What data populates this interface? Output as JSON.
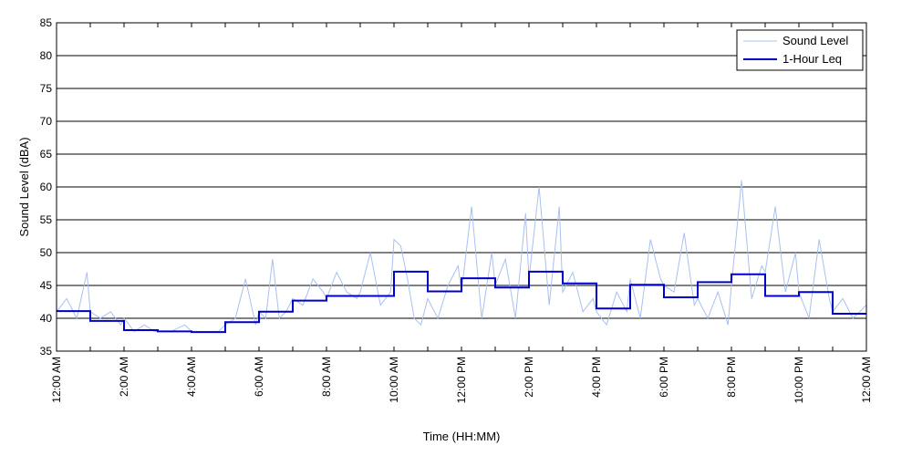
{
  "chart_data": {
    "type": "line",
    "title": "",
    "xlabel": "Time (HH:MM)",
    "ylabel": "Sound Level (dBA)",
    "xlim": [
      0,
      24
    ],
    "ylim": [
      35,
      85
    ],
    "x_tick_values": [
      0,
      2,
      4,
      6,
      8,
      10,
      12,
      14,
      16,
      18,
      20,
      22,
      24
    ],
    "x_tick_labels": [
      "12:00 AM",
      "2:00 AM",
      "4:00 AM",
      "6:00 AM",
      "8:00 AM",
      "10:00 AM",
      "12:00 PM",
      "2:00 PM",
      "4:00 PM",
      "6:00 PM",
      "8:00 PM",
      "10:00 PM",
      "12:00 AM"
    ],
    "y_ticks": [
      35,
      40,
      45,
      50,
      55,
      60,
      65,
      70,
      75,
      80,
      85
    ],
    "grid": "horizontal",
    "legend_position": "top-right",
    "series": [
      {
        "name": "Sound Level",
        "color": "#a8c0f0",
        "x": [
          0,
          0.3,
          0.6,
          0.9,
          1.0,
          1.3,
          1.6,
          1.9,
          2.0,
          2.3,
          2.6,
          2.9,
          3.0,
          3.4,
          3.8,
          4.0,
          4.4,
          4.8,
          5.0,
          5.3,
          5.6,
          5.9,
          6.0,
          6.2,
          6.4,
          6.6,
          6.8,
          7.0,
          7.3,
          7.6,
          7.9,
          8.0,
          8.3,
          8.6,
          8.9,
          9.0,
          9.3,
          9.6,
          9.9,
          10.0,
          10.2,
          10.4,
          10.6,
          10.8,
          11.0,
          11.3,
          11.6,
          11.9,
          12.0,
          12.3,
          12.6,
          12.9,
          13.0,
          13.3,
          13.6,
          13.9,
          14.0,
          14.3,
          14.6,
          14.9,
          15.0,
          15.3,
          15.6,
          15.9,
          16.0,
          16.3,
          16.6,
          16.9,
          17.0,
          17.3,
          17.6,
          17.9,
          18.0,
          18.3,
          18.6,
          18.9,
          19.0,
          19.3,
          19.6,
          19.9,
          20.0,
          20.3,
          20.6,
          20.9,
          21.0,
          21.3,
          21.6,
          21.9,
          22.0,
          22.3,
          22.6,
          22.9,
          23.0,
          23.3,
          23.6,
          24.0
        ],
        "y": [
          41,
          43,
          40,
          47,
          41,
          40,
          41,
          39,
          40,
          38,
          39,
          38,
          38,
          38,
          39,
          38,
          38,
          38,
          39,
          40,
          46,
          39,
          41,
          40,
          49,
          40,
          41,
          43,
          42,
          46,
          44,
          43,
          47,
          44,
          43,
          44,
          50,
          42,
          44,
          52,
          51,
          46,
          40,
          39,
          43,
          40,
          45,
          48,
          44,
          57,
          40,
          50,
          45,
          49,
          40,
          56,
          46,
          60,
          42,
          57,
          44,
          47,
          41,
          43,
          41,
          39,
          44,
          41,
          46,
          40,
          52,
          46,
          45,
          44,
          53,
          42,
          43,
          40,
          44,
          39,
          45,
          61,
          43,
          48,
          47,
          57,
          44,
          50,
          44,
          40,
          52,
          43,
          41,
          43,
          40,
          42
        ]
      },
      {
        "name": "1-Hour Leq",
        "color": "#0000cc",
        "step": "post",
        "x": [
          0,
          1,
          2,
          3,
          4,
          5,
          6,
          7,
          8,
          9,
          10,
          11,
          12,
          13,
          14,
          15,
          16,
          17,
          18,
          19,
          20,
          21,
          22,
          23,
          24
        ],
        "y": [
          41.1,
          39.6,
          38.2,
          38.0,
          37.9,
          39.4,
          41.0,
          42.7,
          43.4,
          43.4,
          47.1,
          44.1,
          46.1,
          44.7,
          47.1,
          45.3,
          41.5,
          45.1,
          43.2,
          45.5,
          46.7,
          43.4,
          44.0,
          40.7,
          40.7
        ]
      }
    ]
  }
}
